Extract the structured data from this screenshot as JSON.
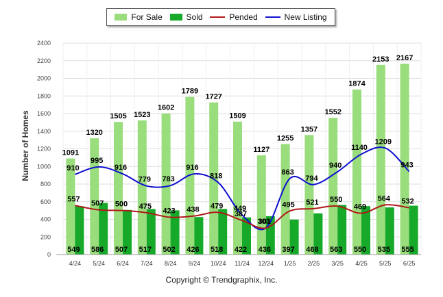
{
  "legend": {
    "for_sale": "For Sale",
    "sold": "Sold",
    "pended": "Pended",
    "new_listing": "New Listing"
  },
  "footer": {
    "copyright": "Copyright © Trendgraphix, Inc."
  },
  "colors": {
    "for_sale": "#99dd7c",
    "sold": "#17a92a",
    "pended": "#b01818",
    "new_listing": "#1010d0",
    "grid": "#dddddd"
  },
  "chart_data": {
    "type": "bar",
    "title": "",
    "xlabel": "",
    "ylabel": "Number of Homes",
    "ylim": [
      0,
      2400
    ],
    "yticks": [
      0,
      200,
      400,
      600,
      800,
      1000,
      1200,
      1400,
      1600,
      1800,
      2000,
      2200,
      2400
    ],
    "grid": true,
    "legend_position": "top",
    "categories": [
      "4/24",
      "5/24",
      "6/24",
      "7/24",
      "8/24",
      "9/24",
      "10/24",
      "11/24",
      "12/24",
      "1/25",
      "2/25",
      "3/25",
      "4/25",
      "5/25",
      "6/25"
    ],
    "series": [
      {
        "name": "For Sale",
        "kind": "bar",
        "values": [
          1091,
          1320,
          1505,
          1523,
          1602,
          1789,
          1727,
          1509,
          1127,
          1255,
          1357,
          1552,
          1874,
          2153,
          2167
        ]
      },
      {
        "name": "Sold",
        "kind": "bar",
        "values": [
          549,
          586,
          507,
          517,
          502,
          426,
          518,
          422,
          436,
          397,
          468,
          563,
          550,
          535,
          555
        ]
      },
      {
        "name": "Pended",
        "kind": "line",
        "values": [
          557,
          507,
          500,
          475,
          423,
          438,
          479,
          387,
          301,
          495,
          521,
          550,
          469,
          564,
          532
        ]
      },
      {
        "name": "New Listing",
        "kind": "line",
        "values": [
          910,
          995,
          916,
          779,
          783,
          916,
          818,
          449,
          303,
          863,
          794,
          940,
          1140,
          1209,
          943
        ]
      }
    ]
  }
}
